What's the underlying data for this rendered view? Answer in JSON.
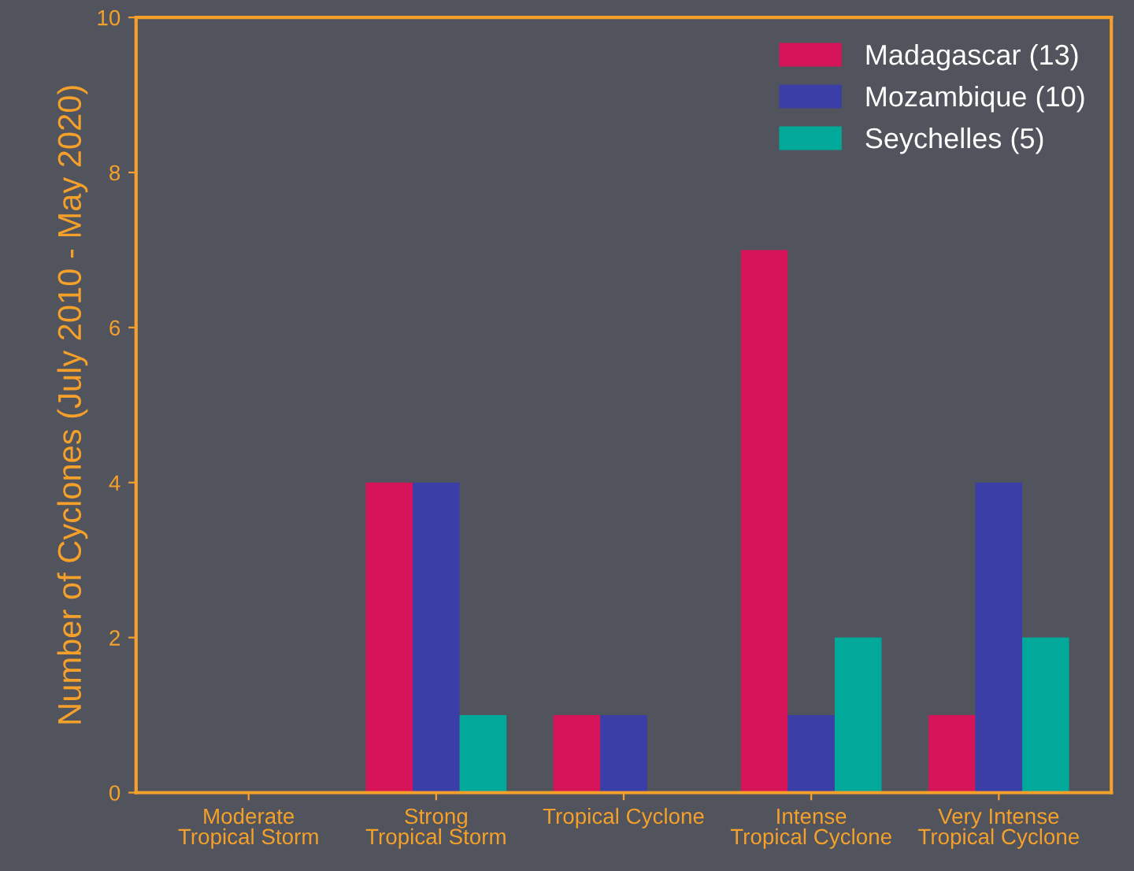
{
  "chart_data": {
    "type": "bar",
    "ylabel": "Number of Cyclones (July 2010 - May 2020)",
    "categories": [
      "Moderate\nTropical Storm",
      "Strong\nTropical Storm",
      "Tropical Cyclone",
      "Intense\nTropical Cyclone",
      "Very Intense\nTropical Cyclone"
    ],
    "series": [
      {
        "name": "Madagascar (13)",
        "color": "#d6145a",
        "values": [
          0,
          4,
          1,
          7,
          1
        ]
      },
      {
        "name": "Mozambique (10)",
        "color": "#3b3ea6",
        "values": [
          0,
          4,
          1,
          1,
          4
        ]
      },
      {
        "name": "Seychelles (5)",
        "color": "#00a99a",
        "values": [
          0,
          1,
          0,
          2,
          2
        ]
      }
    ],
    "ylim": [
      0,
      10
    ],
    "yticks": [
      0,
      2,
      4,
      6,
      8,
      10
    ],
    "grid": false,
    "legend": "top right"
  }
}
